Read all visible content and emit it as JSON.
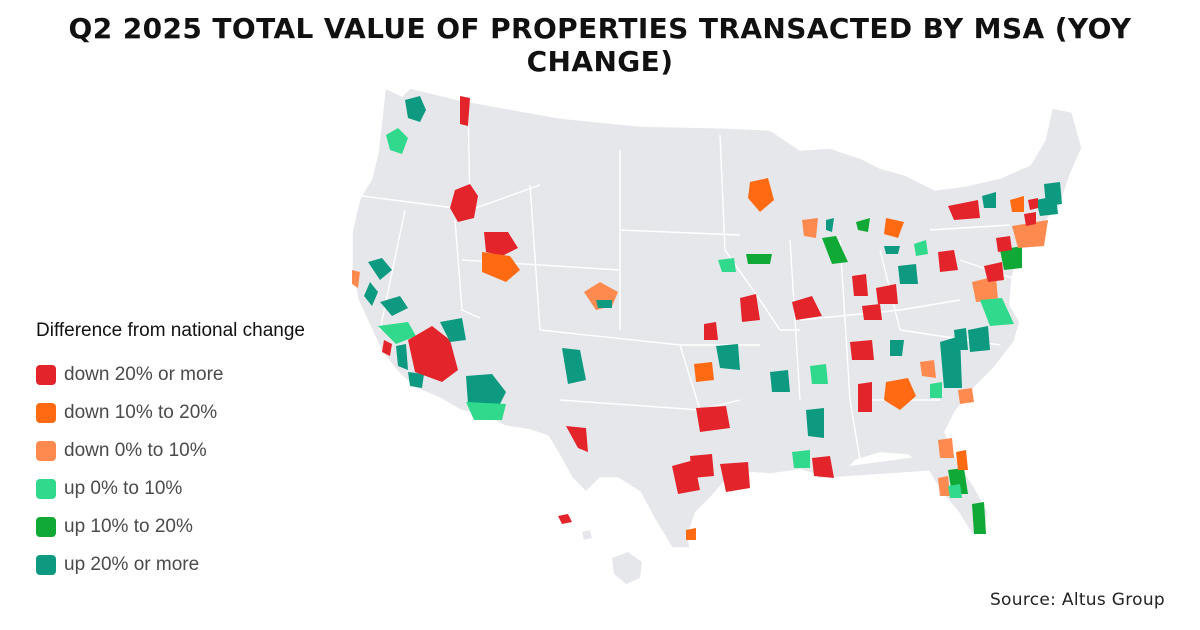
{
  "title": "Q2 2025 TOTAL VALUE OF PROPERTIES TRANSACTED BY MSA (YOY CHANGE)",
  "legend": {
    "title": "Difference from national change",
    "items": [
      {
        "label": "down 20% or more",
        "color": "#e3242b"
      },
      {
        "label": "down 10% to 20%",
        "color": "#ff6a13"
      },
      {
        "label": "down 0% to 10%",
        "color": "#ff8a4f"
      },
      {
        "label": "up 0% to 10%",
        "color": "#30d98b"
      },
      {
        "label": "up 10% to 20%",
        "color": "#10a935"
      },
      {
        "label": "up 20% or more",
        "color": "#0d9a80"
      }
    ]
  },
  "source": "Source: Altus Group",
  "map_colors": {
    "land": "#e6e7eb",
    "border": "#ffffff"
  }
}
